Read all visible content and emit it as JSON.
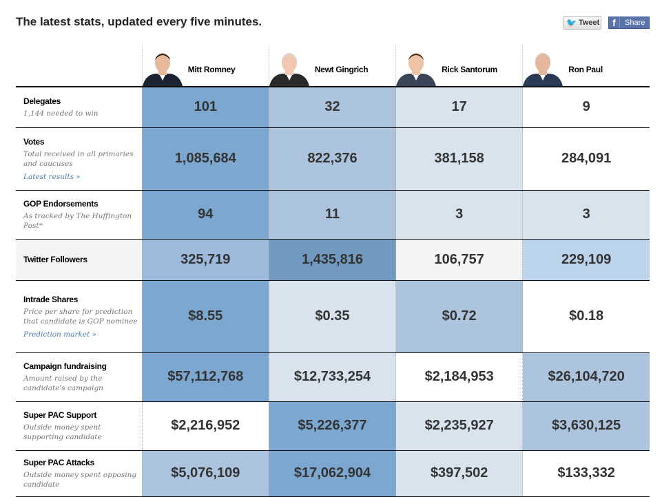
{
  "title": "The latest stats, updated every five minutes.",
  "share": {
    "tweet_label": "Tweet",
    "share_label": "Share"
  },
  "candidates": [
    {
      "name": "Mitt Romney"
    },
    {
      "name": "Newt Gingrich"
    },
    {
      "name": "Rick Santorum"
    },
    {
      "name": "Ron Paul"
    }
  ],
  "colors": {
    "dark": "#7ba7d1",
    "medium": "#adc4de",
    "light": "#d8e3ee",
    "twitter_mid": "#9cbadb",
    "twitter_dark": "#7299bf",
    "twitter_light": "#bcd4eb",
    "grey": "#f4f4f4",
    "white": "#ffffff"
  },
  "rows": [
    {
      "label": "Delegates",
      "sub": "1,144 needed to win",
      "values": [
        "101",
        "32",
        "17",
        "9"
      ],
      "shades": [
        "#7ba7d1",
        "#adc4de",
        "#d8e3ee",
        "#ffffff"
      ]
    },
    {
      "label": "Votes",
      "sub": "Total received in all primaries and caucuses",
      "link": "Latest results »",
      "values": [
        "1,085,684",
        "822,376",
        "381,158",
        "284,091"
      ],
      "shades": [
        "#7ba7d1",
        "#adc4de",
        "#d8e3ee",
        "#ffffff"
      ]
    },
    {
      "label": "GOP Endorsements",
      "sub": "As tracked by The Huffington Post*",
      "values": [
        "94",
        "11",
        "3",
        "3"
      ],
      "shades": [
        "#7ba7d1",
        "#adc4de",
        "#d8e3ee",
        "#d8e3ee"
      ]
    },
    {
      "label": "Twitter Followers",
      "values": [
        "325,719",
        "1,435,816",
        "106,757",
        "229,109"
      ],
      "shades": [
        "#9cbadb",
        "#7299bf",
        "#f4f4f4",
        "#bcd4eb"
      ],
      "label_bg": "#f4f4f4"
    },
    {
      "label": "Intrade Shares",
      "sub": "Price per share for prediction that candidate is GOP nominee",
      "link": "Prediction market »",
      "values": [
        "$8.55",
        "$0.35",
        "$0.72",
        "$0.18"
      ],
      "shades": [
        "#7ba7d1",
        "#d8e3ee",
        "#adc4de",
        "#ffffff"
      ]
    },
    {
      "label": "Campaign fundraising",
      "sub": "Amount raised by the candidate's campaign",
      "values": [
        "$57,112,768",
        "$12,733,254",
        "$2,184,953",
        "$26,104,720"
      ],
      "shades": [
        "#7ba7d1",
        "#d8e3ee",
        "#ffffff",
        "#adc4de"
      ]
    },
    {
      "label": "Super PAC Support",
      "sub": "Outside money spent supporting candidate",
      "values": [
        "$2,216,952",
        "$5,226,377",
        "$2,235,927",
        "$3,630,125"
      ],
      "shades": [
        "#ffffff",
        "#7ba7d1",
        "#d8e3ee",
        "#adc4de"
      ]
    },
    {
      "label": "Super PAC Attacks",
      "sub": "Outside money spent opposing candidate",
      "values": [
        "$5,076,109",
        "$17,062,904",
        "$397,502",
        "$133,332"
      ],
      "shades": [
        "#adc4de",
        "#7ba7d1",
        "#d8e3ee",
        "#ffffff"
      ]
    }
  ]
}
